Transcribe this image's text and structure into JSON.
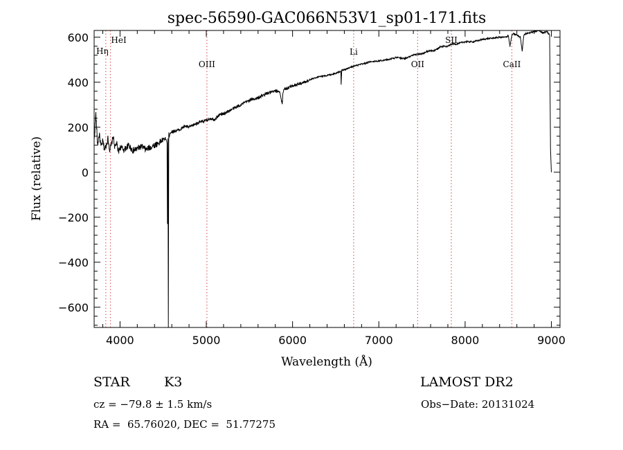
{
  "chart_data": {
    "type": "line",
    "title": "spec-56590-GAC066N53V1_sp01-171.fits",
    "xlabel": "Wavelength (Å)",
    "ylabel": "Flux (relative)",
    "xlim": [
      3700,
      9100
    ],
    "ylim": [
      -690,
      630
    ],
    "xticks": [
      4000,
      5000,
      6000,
      7000,
      8000,
      9000
    ],
    "yticks": [
      -600,
      -400,
      -200,
      0,
      200,
      400,
      600
    ],
    "grid": false,
    "line_color": "#000000",
    "marker_color": "#e06060",
    "series": [
      {
        "x": [
          3700,
          3720,
          3740,
          3760,
          3780,
          3800,
          3820,
          3840,
          3860,
          3880,
          3900,
          3920,
          3940,
          3960,
          3980,
          4000,
          4050,
          4100,
          4150,
          4200,
          4250,
          4300,
          4350,
          4400,
          4450,
          4500,
          4530,
          4545,
          4550,
          4555,
          4560,
          4565,
          4570,
          4580,
          4600,
          4650,
          4700,
          4750,
          4800,
          4850,
          4900,
          4950,
          5000,
          5050,
          5100,
          5150,
          5200,
          5300,
          5400,
          5500,
          5600,
          5700,
          5800,
          5850,
          5880,
          5890,
          5900,
          5950,
          6000,
          6100,
          6200,
          6300,
          6400,
          6500,
          6560,
          6563,
          6570,
          6600,
          6700,
          6800,
          6900,
          7000,
          7100,
          7200,
          7300,
          7400,
          7450,
          7500,
          7550,
          7600,
          7650,
          7700,
          7750,
          7800,
          7850,
          7900,
          8000,
          8100,
          8200,
          8300,
          8400,
          8480,
          8500,
          8520,
          8540,
          8545,
          8560,
          8600,
          8640,
          8662,
          8680,
          8700,
          8750,
          8800,
          8850,
          8900,
          8950,
          8980,
          8985,
          8990,
          9000
        ],
        "y": [
          140,
          260,
          120,
          170,
          110,
          140,
          100,
          120,
          150,
          100,
          120,
          160,
          110,
          130,
          90,
          110,
          100,
          120,
          95,
          105,
          115,
          100,
          110,
          120,
          130,
          145,
          150,
          130,
          -230,
          150,
          -690,
          170,
          160,
          175,
          180,
          185,
          190,
          205,
          200,
          210,
          220,
          225,
          230,
          240,
          235,
          255,
          260,
          280,
          300,
          320,
          330,
          350,
          360,
          360,
          300,
          360,
          370,
          375,
          385,
          395,
          410,
          425,
          430,
          440,
          450,
          390,
          455,
          455,
          470,
          480,
          490,
          495,
          500,
          510,
          505,
          520,
          525,
          525,
          535,
          540,
          540,
          555,
          560,
          560,
          570,
          570,
          580,
          580,
          590,
          595,
          600,
          600,
          610,
          560,
          605,
          610,
          615,
          610,
          600,
          540,
          610,
          615,
          620,
          625,
          630,
          620,
          625,
          610,
          330,
          100,
          0
        ]
      }
    ],
    "lines": [
      {
        "label": "HeI",
        "x": 3889
      },
      {
        "label": "Hη",
        "x": 3835
      },
      {
        "label": "OIII",
        "x": 5007
      },
      {
        "label": "Li",
        "x": 6708
      },
      {
        "label": "OII",
        "x": 7450
      },
      {
        "label": "SII",
        "x": 7840
      },
      {
        "label": "CaII",
        "x": 8542
      }
    ]
  },
  "info": {
    "class_label": "STAR",
    "subclass": "K3",
    "survey": "LAMOST DR2",
    "cz": "cz = −79.8 ± 1.5 km/s",
    "obs_date": "Obs−Date: 20131024",
    "radec": "RA =  65.76020, DEC =  51.77275"
  }
}
